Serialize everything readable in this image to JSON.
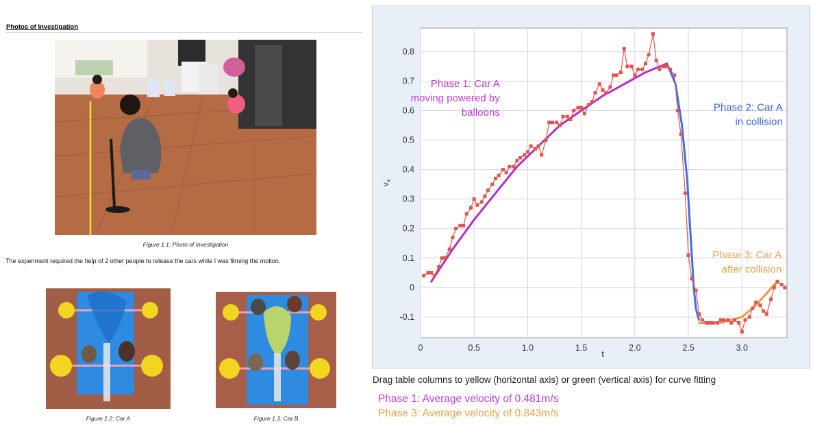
{
  "left": {
    "heading": "Photos of Investigation",
    "caption1": "Figure 1.1: Photo of Investigation",
    "body": "The experiment required the help of 2 other people to release the cars while I was filming the motion.",
    "caption2": "Figure 1.2: Car A",
    "caption3": "Figure 1.3: Car B"
  },
  "instruction": "Drag table columns to yellow (horizontal axis) or green (vertical axis) for curve fitting",
  "summary": {
    "phase1": "Phase 1: Average velocity of 0.481m/s",
    "phase3": "Phase 3: Average velocity of 0.843m/s"
  },
  "colors": {
    "data": "#e4534c",
    "phase1_fit": "#b02fc8",
    "phase2_fit": "#3f6fe6",
    "phase3_fit": "#eb9a43",
    "phase1_label": "#c03ad8",
    "phase2_label": "#3c63e0",
    "phase3_label": "#e8a24a"
  },
  "chart_data": {
    "type": "scatter",
    "xlabel": "t",
    "ylabel": "v",
    "ylabel_subscript": "x",
    "xlim": [
      0,
      3.42
    ],
    "ylim": [
      -0.17,
      0.88
    ],
    "xticks": [
      0,
      0.5,
      1.0,
      1.5,
      2.0,
      2.5,
      3.0
    ],
    "xtick_labels": [
      "0",
      "0.5",
      "1.0",
      "1.5",
      "2.0",
      "2.5",
      "3.0"
    ],
    "yticks": [
      -0.1,
      0,
      0.1,
      0.2,
      0.3,
      0.4,
      0.5,
      0.6,
      0.7,
      0.8
    ],
    "ytick_labels": [
      "-0.1",
      "0",
      "0.1",
      "0.2",
      "0.3",
      "0.4",
      "0.5",
      "0.6",
      "0.7",
      "0.8"
    ],
    "grid": true,
    "series": [
      {
        "color": "#e4534c",
        "x": [
          0.03,
          0.07,
          0.1,
          0.13,
          0.17,
          0.2,
          0.23,
          0.27,
          0.3,
          0.33,
          0.37,
          0.4,
          0.43,
          0.47,
          0.5,
          0.53,
          0.57,
          0.6,
          0.63,
          0.67,
          0.7,
          0.73,
          0.77,
          0.8,
          0.83,
          0.87,
          0.9,
          0.93,
          0.97,
          1.0,
          1.03,
          1.07,
          1.1,
          1.13,
          1.17,
          1.2,
          1.23,
          1.27,
          1.3,
          1.33,
          1.37,
          1.4,
          1.43,
          1.47,
          1.5,
          1.53,
          1.57,
          1.6,
          1.63,
          1.67,
          1.7,
          1.73,
          1.77,
          1.8,
          1.83,
          1.87,
          1.9,
          1.93,
          1.97,
          2.0,
          2.03,
          2.07,
          2.1,
          2.13,
          2.17,
          2.2,
          2.23,
          2.27,
          2.3,
          2.33,
          2.37,
          2.4,
          2.43,
          2.47,
          2.5,
          2.53,
          2.57,
          2.6,
          2.63,
          2.67,
          2.7,
          2.73,
          2.77,
          2.8,
          2.83,
          2.87,
          2.9,
          2.93,
          2.97,
          3.0,
          3.03,
          3.07,
          3.1,
          3.13,
          3.17,
          3.2,
          3.23,
          3.27,
          3.3,
          3.33,
          3.37,
          3.4
        ],
        "y": [
          0.04,
          0.05,
          0.05,
          0.04,
          0.07,
          0.1,
          0.1,
          0.13,
          0.17,
          0.2,
          0.21,
          0.21,
          0.25,
          0.27,
          0.3,
          0.28,
          0.29,
          0.31,
          0.33,
          0.35,
          0.37,
          0.38,
          0.4,
          0.39,
          0.41,
          0.41,
          0.43,
          0.44,
          0.45,
          0.46,
          0.48,
          0.47,
          0.48,
          0.45,
          0.5,
          0.56,
          0.56,
          0.56,
          0.55,
          0.58,
          0.58,
          0.57,
          0.6,
          0.61,
          0.61,
          0.59,
          0.62,
          0.63,
          0.66,
          0.69,
          0.67,
          0.66,
          0.68,
          0.72,
          0.72,
          0.73,
          0.81,
          0.75,
          0.75,
          0.72,
          0.74,
          0.74,
          0.76,
          0.79,
          0.86,
          0.77,
          0.74,
          0.75,
          0.75,
          0.74,
          0.72,
          0.6,
          0.52,
          0.32,
          0.11,
          0.03,
          -0.01,
          -0.09,
          -0.11,
          -0.12,
          -0.12,
          -0.12,
          -0.12,
          -0.11,
          -0.11,
          -0.11,
          -0.12,
          -0.11,
          -0.12,
          -0.15,
          -0.11,
          -0.1,
          -0.07,
          -0.05,
          -0.06,
          -0.08,
          -0.09,
          -0.04,
          0.0,
          0.02,
          0.01,
          0.0
        ]
      }
    ],
    "fits": [
      {
        "color": "#b02fc8",
        "x": [
          0.1,
          0.3,
          0.5,
          0.7,
          0.9,
          1.1,
          1.3,
          1.5,
          1.7,
          1.9,
          2.1,
          2.3
        ],
        "y": [
          0.02,
          0.13,
          0.23,
          0.32,
          0.41,
          0.48,
          0.55,
          0.6,
          0.65,
          0.69,
          0.73,
          0.76
        ]
      },
      {
        "color": "#3f6fe6",
        "x": [
          2.3,
          2.38,
          2.44,
          2.49,
          2.52,
          2.55,
          2.57,
          2.59,
          2.6
        ],
        "y": [
          0.76,
          0.69,
          0.55,
          0.36,
          0.18,
          0.0,
          -0.07,
          -0.1,
          -0.11
        ]
      },
      {
        "color": "#eb9a43",
        "x": [
          2.6,
          2.8,
          3.0,
          3.13,
          3.23,
          3.3,
          3.34
        ],
        "y": [
          -0.12,
          -0.12,
          -0.1,
          -0.06,
          -0.02,
          0.01,
          0.02
        ]
      }
    ],
    "annotations": [
      {
        "lines": [
          "Phase 1: Car A",
          "moving powered by",
          "balloons"
        ],
        "color": "#c03ad8",
        "x": 0.74,
        "y": 0.68,
        "align": "end"
      },
      {
        "lines": [
          "Phase 2: Car A",
          "in collision"
        ],
        "color": "#3c63e0",
        "x": 3.38,
        "y": 0.6,
        "align": "end"
      },
      {
        "lines": [
          "Phase 3: Car A",
          "after collision"
        ],
        "color": "#e8a24a",
        "x": 3.37,
        "y": 0.1,
        "align": "end"
      }
    ]
  }
}
